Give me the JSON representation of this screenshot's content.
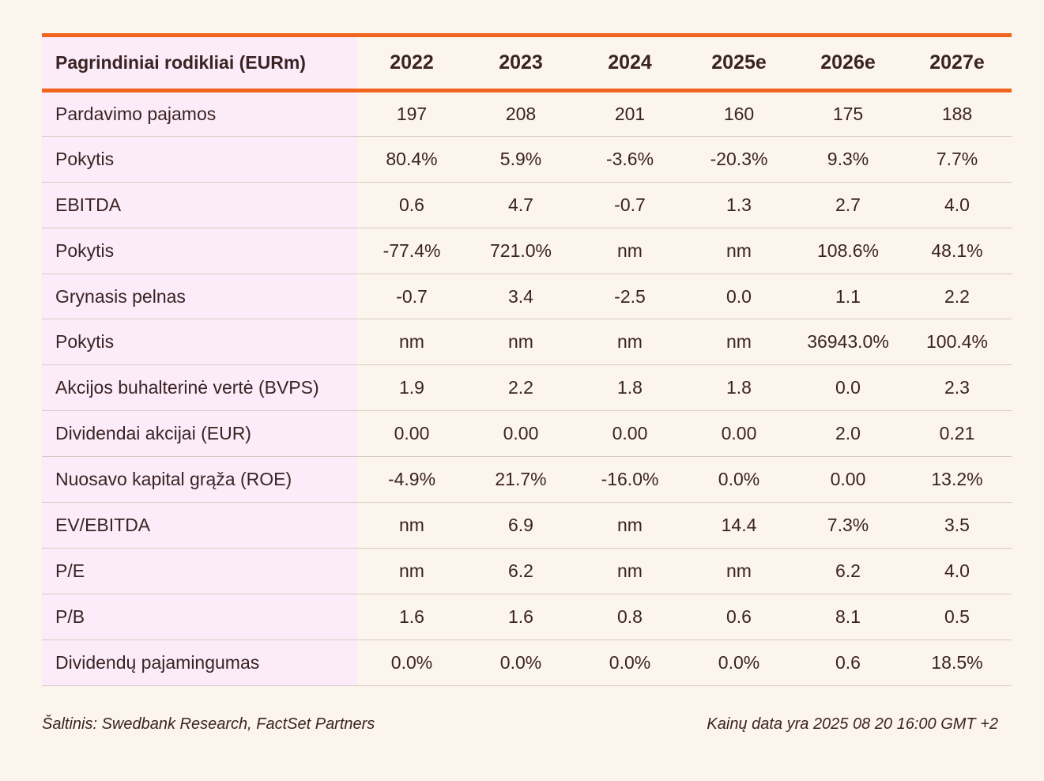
{
  "table": {
    "header_label": "Pagrindiniai rodikliai (EURm)",
    "years": [
      "2022",
      "2023",
      "2024",
      "2025e",
      "2026e",
      "2027e"
    ],
    "rows": [
      {
        "label": "Pardavimo pajamos",
        "values": [
          "197",
          "208",
          "201",
          "160",
          "175",
          "188"
        ]
      },
      {
        "label": "Pokytis",
        "values": [
          "80.4%",
          "5.9%",
          "-3.6%",
          "-20.3%",
          "9.3%",
          "7.7%"
        ]
      },
      {
        "label": "EBITDA",
        "values": [
          "0.6",
          "4.7",
          "-0.7",
          "1.3",
          "2.7",
          "4.0"
        ]
      },
      {
        "label": "Pokytis",
        "values": [
          "-77.4%",
          "721.0%",
          "nm",
          "nm",
          "108.6%",
          "48.1%"
        ]
      },
      {
        "label": "Grynasis pelnas",
        "values": [
          "-0.7",
          "3.4",
          "-2.5",
          "0.0",
          "1.1",
          "2.2"
        ]
      },
      {
        "label": "Pokytis",
        "values": [
          "nm",
          "nm",
          "nm",
          "nm",
          "36943.0%",
          "100.4%"
        ]
      },
      {
        "label": "Akcijos buhalterinė vertė (BVPS)",
        "values": [
          "1.9",
          "2.2",
          "1.8",
          "1.8",
          "0.0",
          "2.3"
        ]
      },
      {
        "label": "Dividendai akcijai (EUR)",
        "values": [
          "0.00",
          "0.00",
          "0.00",
          "0.00",
          "2.0",
          "0.21"
        ]
      },
      {
        "label": "Nuosavo kapital grąža (ROE)",
        "values": [
          "-4.9%",
          "21.7%",
          "-16.0%",
          "0.0%",
          "0.00",
          "13.2%"
        ]
      },
      {
        "label": "EV/EBITDA",
        "values": [
          "nm",
          "6.9",
          "nm",
          "14.4",
          "7.3%",
          "3.5"
        ]
      },
      {
        "label": "P/E",
        "values": [
          "nm",
          "6.2",
          "nm",
          "nm",
          "6.2",
          "4.0"
        ]
      },
      {
        "label": "P/B",
        "values": [
          "1.6",
          "1.6",
          "0.8",
          "0.6",
          "8.1",
          "0.5"
        ]
      },
      {
        "label": "Dividendų pajamingumas",
        "values": [
          "0.0%",
          "0.0%",
          "0.0%",
          "0.0%",
          "0.6",
          "18.5%"
        ]
      }
    ]
  },
  "footer": {
    "source": "Šaltinis: Swedbank Research, FactSet Partners",
    "price_date": "Kainų data yra 2025 08 20 16:00 GMT +2"
  },
  "colors": {
    "accent": "#f0641e",
    "label_column_bg": "#fcebf8",
    "page_bg": "#fcf5ed",
    "text": "#3a2323"
  }
}
